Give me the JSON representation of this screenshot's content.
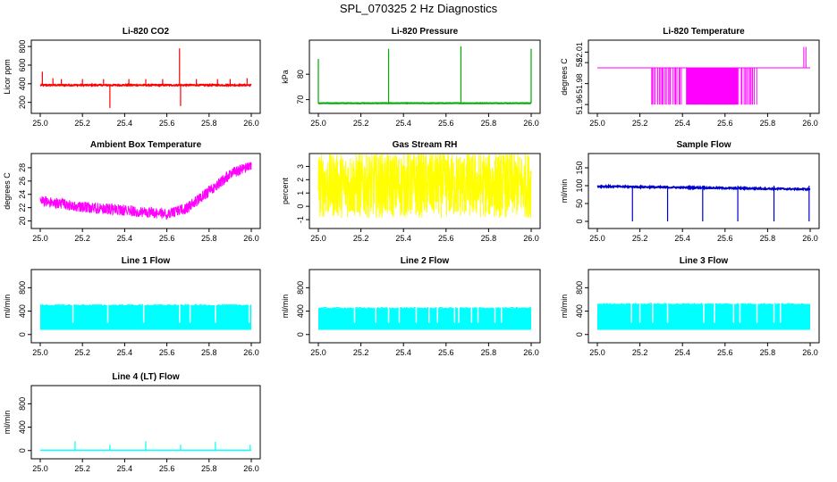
{
  "page": {
    "title": "SPL_070325  2 Hz Diagnostics"
  },
  "chart_data": [
    {
      "id": "co2",
      "type": "line",
      "title": "Li-820 CO2",
      "ylabel": "Licor ppm",
      "xlim": [
        25.0,
        26.0
      ],
      "ylim": [
        120,
        830
      ],
      "xticks": [
        25.0,
        25.2,
        25.4,
        25.6,
        25.8,
        26.0
      ],
      "yticks": [
        200,
        400,
        600,
        800
      ],
      "color": "#ff0000",
      "series": [
        {
          "name": "CO2",
          "baseline": 385,
          "noise": 12,
          "spikes": [
            [
              25.01,
              530
            ],
            [
              25.33,
              140
            ],
            [
              25.66,
              780
            ],
            [
              25.665,
              160
            ],
            [
              25.06,
              460
            ],
            [
              25.1,
              450
            ],
            [
              25.2,
              450
            ],
            [
              25.3,
              450
            ],
            [
              25.42,
              450
            ],
            [
              25.5,
              450
            ],
            [
              25.58,
              450
            ],
            [
              25.74,
              450
            ],
            [
              25.84,
              450
            ],
            [
              25.9,
              450
            ],
            [
              25.98,
              460
            ]
          ]
        }
      ]
    },
    {
      "id": "pressure",
      "type": "line",
      "title": "Li-820 Pressure",
      "ylabel": "kPa",
      "xlim": [
        25.0,
        26.0
      ],
      "ylim": [
        66,
        92
      ],
      "xticks": [
        25.0,
        25.2,
        25.4,
        25.6,
        25.8,
        26.0
      ],
      "yticks": [
        70,
        80
      ],
      "color": "#00aa00",
      "series": [
        {
          "name": "Pressure",
          "baseline": 68.6,
          "noise": 0.15,
          "spikes": [
            [
              25.0,
              86
            ],
            [
              25.33,
              90
            ],
            [
              25.67,
              91
            ],
            [
              26.0,
              90
            ]
          ]
        }
      ]
    },
    {
      "id": "licor_temp",
      "type": "line",
      "title": "Li-820 Temperature",
      "ylabel": "degrees C",
      "xlim": [
        25.0,
        26.0
      ],
      "ylim": [
        51.955,
        52.018
      ],
      "xticks": [
        25.0,
        25.2,
        25.4,
        25.6,
        25.8,
        26.0
      ],
      "yticks": [
        51.96,
        51.98,
        52.0,
        52.01
      ],
      "yticklabels": [
        "51.96",
        "51.98",
        "52",
        "52.01"
      ],
      "color": "#ff00ff",
      "series": [
        {
          "name": "Temperature",
          "baseline": 51.995,
          "low": 51.96,
          "band": [
            25.25,
            25.75
          ],
          "spikes": [
            [
              25.97,
              52.015
            ],
            [
              25.98,
              52.015
            ]
          ]
        }
      ]
    },
    {
      "id": "ambient_temp",
      "type": "line",
      "title": "Ambient Box Temperature",
      "ylabel": "degrees C",
      "xlim": [
        25.0,
        26.0
      ],
      "ylim": [
        19.4,
        29.6
      ],
      "xticks": [
        25.0,
        25.2,
        25.4,
        25.6,
        25.8,
        26.0
      ],
      "yticks": [
        20,
        22,
        24,
        26,
        28
      ],
      "color": "#ff00ff",
      "series": [
        {
          "name": "Ambient",
          "curve": [
            [
              25.0,
              23.0
            ],
            [
              25.2,
              22.1
            ],
            [
              25.4,
              21.6
            ],
            [
              25.6,
              21.1
            ],
            [
              25.7,
              22.0
            ],
            [
              25.8,
              24.5
            ],
            [
              25.9,
              27.0
            ],
            [
              26.0,
              28.4
            ]
          ],
          "noise": 1.2
        }
      ]
    },
    {
      "id": "rh",
      "type": "line",
      "title": "Gas Stream RH",
      "ylabel": "percent",
      "xlim": [
        25.0,
        26.0
      ],
      "ylim": [
        -1.4,
        3.7
      ],
      "xticks": [
        25.0,
        25.2,
        25.4,
        25.6,
        25.8,
        26.0
      ],
      "yticks": [
        -1,
        0,
        1,
        2,
        3
      ],
      "color": "#ffff00",
      "series": [
        {
          "name": "RH",
          "baseline": 1.6,
          "noise": 2.6
        }
      ]
    },
    {
      "id": "sample_flow",
      "type": "line",
      "title": "Sample Flow",
      "ylabel": "ml/min",
      "xlim": [
        25.0,
        26.0
      ],
      "ylim": [
        -10,
        180
      ],
      "xticks": [
        25.0,
        25.2,
        25.4,
        25.6,
        25.8,
        26.0
      ],
      "yticks": [
        0,
        50,
        100,
        150
      ],
      "color": "#0000cc",
      "series": [
        {
          "name": "Flow",
          "start": 98,
          "end": 90,
          "noise": 4,
          "dips": [
            25.165,
            25.33,
            25.495,
            25.66,
            25.83,
            25.995
          ]
        }
      ]
    },
    {
      "id": "line1",
      "type": "area",
      "title": "Line 1 Flow",
      "ylabel": "ml/min",
      "xlim": [
        25.0,
        26.0
      ],
      "ylim": [
        -80,
        1050
      ],
      "xticks": [
        25.0,
        25.2,
        25.4,
        25.6,
        25.8,
        26.0
      ],
      "yticks": [
        0,
        400,
        800
      ],
      "color": "#00ffff",
      "series": [
        {
          "name": "Line 1",
          "low": 80,
          "high": 500,
          "gaps": [
            25.155,
            25.32,
            25.49,
            25.66,
            25.71,
            25.83,
            25.99
          ]
        }
      ]
    },
    {
      "id": "line2",
      "type": "area",
      "title": "Line 2 Flow",
      "ylabel": "ml/min",
      "xlim": [
        25.0,
        26.0
      ],
      "ylim": [
        -80,
        1050
      ],
      "xticks": [
        25.0,
        25.2,
        25.4,
        25.6,
        25.8,
        26.0
      ],
      "yticks": [
        0,
        400,
        800
      ],
      "color": "#00ffff",
      "series": [
        {
          "name": "Line 2",
          "low": 80,
          "high": 450,
          "gaps": [
            25.17,
            25.27,
            25.33,
            25.38,
            25.46,
            25.52,
            25.56,
            25.64,
            25.66,
            25.72,
            25.75,
            25.83,
            25.86
          ]
        }
      ]
    },
    {
      "id": "line3",
      "type": "area",
      "title": "Line 3 Flow",
      "ylabel": "ml/min",
      "xlim": [
        25.0,
        26.0
      ],
      "ylim": [
        -80,
        1050
      ],
      "xticks": [
        25.0,
        25.2,
        25.4,
        25.6,
        25.8,
        26.0
      ],
      "yticks": [
        0,
        400,
        800
      ],
      "color": "#00ffff",
      "series": [
        {
          "name": "Line 3",
          "low": 80,
          "high": 520,
          "gaps": [
            25.16,
            25.2,
            25.26,
            25.33,
            25.5,
            25.55,
            25.64,
            25.67,
            25.75,
            25.83,
            25.86
          ]
        }
      ]
    },
    {
      "id": "line4",
      "type": "line",
      "title": "Line 4 (LT) Flow",
      "ylabel": "ml/min",
      "xlim": [
        25.0,
        26.0
      ],
      "ylim": [
        -80,
        1050
      ],
      "xticks": [
        25.0,
        25.2,
        25.4,
        25.6,
        25.8,
        26.0
      ],
      "yticks": [
        0,
        400,
        800
      ],
      "color": "#00ffff",
      "series": [
        {
          "name": "Line 4",
          "baseline": 5,
          "spikes": [
            [
              25.165,
              160
            ],
            [
              25.33,
              100
            ],
            [
              25.5,
              160
            ],
            [
              25.665,
              100
            ],
            [
              25.83,
              150
            ],
            [
              25.995,
              100
            ]
          ]
        }
      ]
    }
  ]
}
